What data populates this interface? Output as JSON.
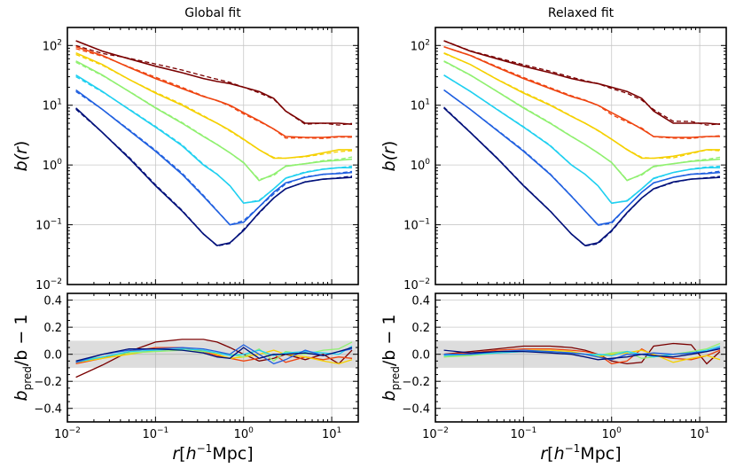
{
  "chart_data": {
    "type": "line",
    "xscale": "log",
    "xlim": [
      0.01,
      20
    ],
    "xlabel_base": "r[h",
    "xlabel_exp": "−1",
    "xlabel_unit": "Mpc]",
    "ylabel_top_base": "b(",
    "ylabel_top_var": "r",
    "ylabel_top_close": ")",
    "ylabel_bottom_base": "b",
    "ylabel_bottom_sub": "pred",
    "ylabel_bottom_rest": "/b − 1",
    "top_yscale": "log",
    "top_ylim": [
      0.01,
      200
    ],
    "bottom_ylim": [
      -0.5,
      0.45
    ],
    "bottom_band": [
      -0.1,
      0.1
    ],
    "grid": true,
    "line_styles": {
      "measured": "solid",
      "prediction": "dashed"
    },
    "x_ticks": [
      {
        "value": 0.01,
        "base": "10",
        "exp": "−2"
      },
      {
        "value": 0.1,
        "base": "10",
        "exp": "−1"
      },
      {
        "value": 1,
        "base": "10",
        "exp": "0"
      },
      {
        "value": 10,
        "base": "10",
        "exp": "1"
      }
    ],
    "top_y_ticks": [
      {
        "value": 0.01,
        "base": "10",
        "exp": "−2"
      },
      {
        "value": 0.1,
        "base": "10",
        "exp": "−1"
      },
      {
        "value": 1,
        "base": "10",
        "exp": "0"
      },
      {
        "value": 10,
        "base": "10",
        "exp": "1"
      },
      {
        "value": 100,
        "base": "10",
        "exp": "2"
      }
    ],
    "bottom_y_ticks": [
      {
        "value": 0.4,
        "label": "0.4"
      },
      {
        "value": 0.2,
        "label": "0.2"
      },
      {
        "value": 0.0,
        "label": "0.0"
      },
      {
        "value": -0.2,
        "label": "−0.2"
      },
      {
        "value": -0.4,
        "label": "−0.4"
      }
    ],
    "x": [
      0.0125,
      0.025,
      0.05,
      0.1,
      0.2,
      0.35,
      0.5,
      0.7,
      1.0,
      1.5,
      2.2,
      3.0,
      5.0,
      8.0,
      12.0,
      17.0
    ],
    "series": [
      {
        "color": "#7a0000",
        "values": [
          120,
          80,
          60,
          45,
          35,
          28,
          25,
          23,
          20,
          17,
          13,
          8,
          5.0,
          5.0,
          5.0,
          4.8
        ]
      },
      {
        "color": "#ee4410",
        "values": [
          95,
          68,
          43,
          28,
          19,
          14,
          12,
          10,
          7.5,
          5.5,
          4.0,
          3.0,
          2.9,
          2.9,
          3.0,
          3.0
        ]
      },
      {
        "color": "#f5d000",
        "values": [
          75,
          48,
          27,
          16,
          10,
          6.5,
          5.0,
          3.8,
          2.7,
          1.8,
          1.3,
          1.3,
          1.4,
          1.6,
          1.8,
          1.8
        ]
      },
      {
        "color": "#90f070",
        "values": [
          55,
          32,
          17,
          9,
          5,
          3.0,
          2.2,
          1.6,
          1.1,
          0.55,
          0.7,
          0.95,
          1.05,
          1.15,
          1.2,
          1.25
        ]
      },
      {
        "color": "#20d0f0",
        "values": [
          32,
          17,
          8.5,
          4.3,
          2.1,
          1.0,
          0.7,
          0.45,
          0.23,
          0.25,
          0.4,
          0.6,
          0.75,
          0.85,
          0.9,
          0.9
        ]
      },
      {
        "color": "#2060e0",
        "values": [
          18,
          8.5,
          3.8,
          1.7,
          0.7,
          0.3,
          0.17,
          0.1,
          0.11,
          0.2,
          0.35,
          0.5,
          0.62,
          0.7,
          0.72,
          0.75
        ]
      },
      {
        "color": "#00107a",
        "values": [
          9,
          3.5,
          1.3,
          0.45,
          0.17,
          0.07,
          0.045,
          0.05,
          0.08,
          0.16,
          0.28,
          0.4,
          0.52,
          0.58,
          0.6,
          0.62
        ]
      }
    ],
    "panels": [
      {
        "title": "Global fit",
        "residuals": [
          [
            -0.17,
            -0.08,
            0.02,
            0.09,
            0.11,
            0.11,
            0.09,
            0.05,
            0.0,
            -0.05,
            -0.03,
            0.0,
            -0.04,
            0.0,
            -0.07,
            0.03
          ],
          [
            -0.07,
            -0.03,
            0.02,
            0.05,
            0.05,
            0.02,
            -0.01,
            -0.03,
            -0.05,
            -0.03,
            0.0,
            -0.06,
            -0.02,
            -0.04,
            -0.02,
            -0.03
          ],
          [
            -0.06,
            -0.03,
            0.0,
            0.03,
            0.04,
            0.03,
            0.0,
            -0.03,
            -0.02,
            0.0,
            0.03,
            0.0,
            -0.02,
            -0.05,
            -0.07,
            -0.04
          ],
          [
            -0.05,
            -0.02,
            0.01,
            0.02,
            0.03,
            0.02,
            0.01,
            0.0,
            -0.02,
            0.04,
            -0.05,
            0.02,
            0.0,
            0.03,
            0.04,
            0.09
          ],
          [
            -0.06,
            -0.02,
            0.02,
            0.03,
            0.04,
            0.03,
            0.01,
            -0.01,
            0.0,
            0.03,
            -0.01,
            0.01,
            0.02,
            0.01,
            0.0,
            0.06
          ],
          [
            -0.06,
            0.0,
            0.03,
            0.04,
            0.05,
            0.04,
            0.02,
            0.0,
            0.07,
            0.0,
            -0.07,
            -0.04,
            0.03,
            -0.01,
            0.02,
            0.04
          ],
          [
            -0.05,
            0.0,
            0.04,
            0.04,
            0.03,
            0.01,
            -0.02,
            -0.03,
            0.05,
            -0.03,
            0.0,
            0.0,
            0.01,
            -0.01,
            0.02,
            0.05
          ]
        ]
      },
      {
        "title": "Relaxed fit",
        "residuals": [
          [
            0.0,
            0.02,
            0.04,
            0.06,
            0.06,
            0.05,
            0.03,
            0.0,
            -0.05,
            -0.07,
            -0.06,
            0.06,
            0.08,
            0.07,
            -0.07,
            0.02
          ],
          [
            0.0,
            0.01,
            0.03,
            0.04,
            0.04,
            0.03,
            0.02,
            0.0,
            -0.07,
            -0.05,
            0.04,
            -0.01,
            -0.03,
            -0.04,
            -0.01,
            0.03
          ],
          [
            -0.02,
            0.0,
            0.01,
            0.03,
            0.03,
            0.02,
            0.0,
            -0.02,
            0.0,
            0.01,
            0.03,
            0.0,
            -0.06,
            -0.03,
            -0.01,
            -0.04
          ],
          [
            -0.02,
            -0.01,
            0.01,
            0.02,
            0.02,
            0.01,
            0.0,
            -0.01,
            0.01,
            0.02,
            -0.03,
            -0.02,
            0.0,
            0.02,
            0.04,
            0.08
          ],
          [
            -0.01,
            0.0,
            0.01,
            0.02,
            0.02,
            0.01,
            0.0,
            0.0,
            -0.01,
            0.02,
            0.0,
            -0.02,
            0.0,
            0.01,
            0.03,
            0.06
          ],
          [
            0.0,
            0.0,
            0.02,
            0.03,
            0.02,
            0.01,
            0.0,
            -0.02,
            -0.04,
            0.0,
            0.0,
            0.01,
            0.0,
            0.01,
            0.02,
            0.05
          ],
          [
            0.03,
            0.01,
            0.02,
            0.02,
            0.01,
            0.0,
            -0.02,
            -0.04,
            -0.03,
            -0.02,
            0.0,
            -0.01,
            -0.02,
            0.0,
            0.02,
            0.04
          ]
        ]
      }
    ]
  }
}
